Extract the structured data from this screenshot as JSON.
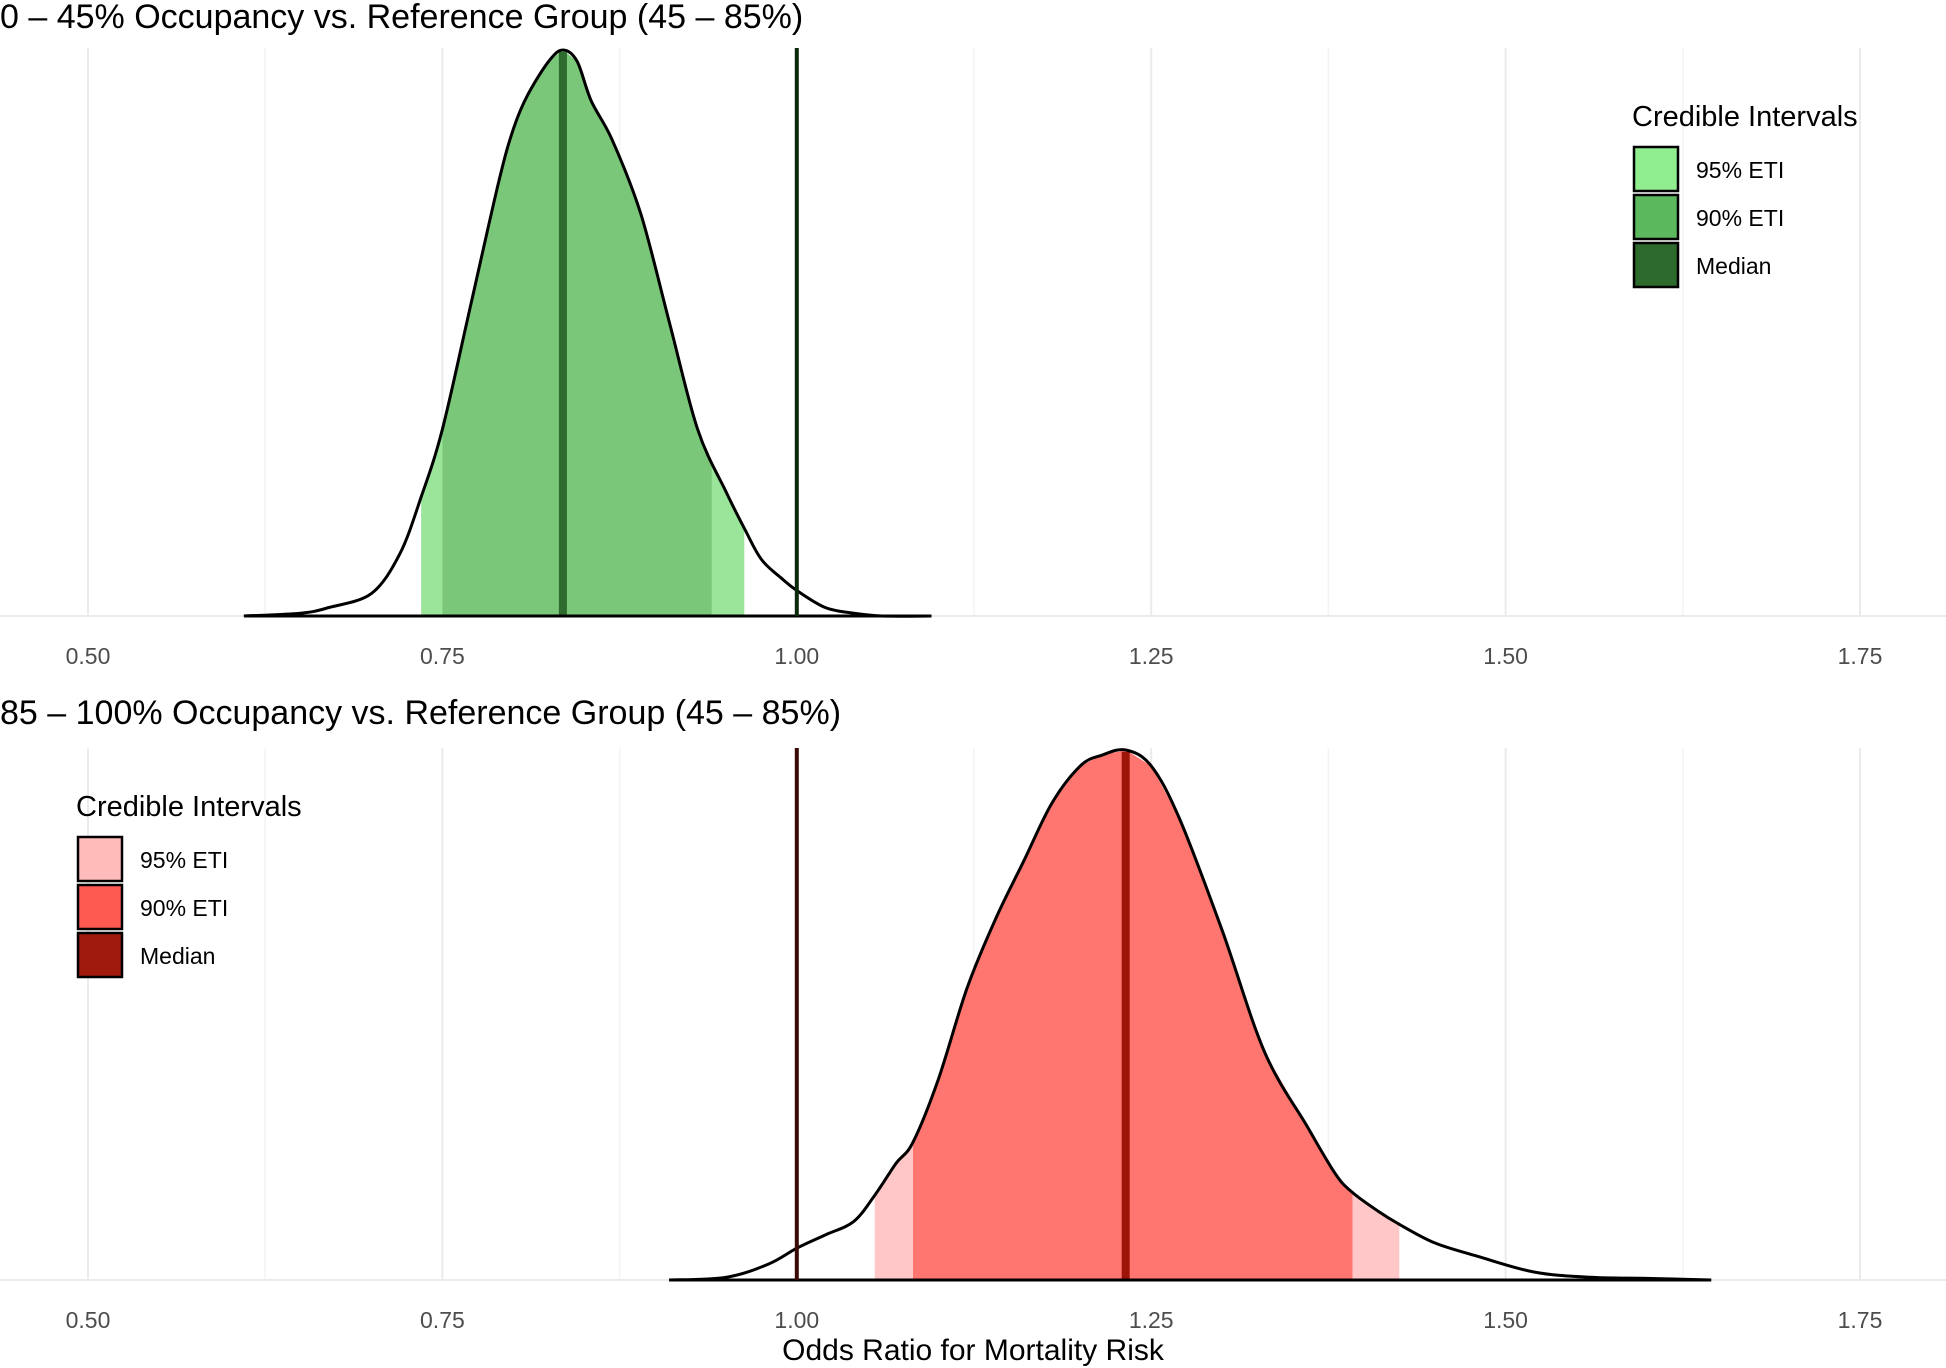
{
  "chart_data": [
    {
      "type": "density",
      "title": "0 – 45% Occupancy vs. Reference Group (45 – 85%)",
      "xlabel": "",
      "ylabel": "",
      "xlim": [
        0.5,
        1.75
      ],
      "xticks": [
        0.5,
        0.75,
        1.0,
        1.25,
        1.5,
        1.75
      ],
      "xtick_labels": [
        "0.50",
        "0.75",
        "1.00",
        "1.25",
        "1.50",
        "1.75"
      ],
      "reference_line": 1.0,
      "median": 0.835,
      "eti_95": [
        0.735,
        0.963
      ],
      "eti_90": [
        0.75,
        0.94
      ],
      "density": {
        "x": [
          0.61,
          0.65,
          0.67,
          0.7,
          0.72,
          0.735,
          0.75,
          0.77,
          0.79,
          0.8,
          0.81,
          0.825,
          0.835,
          0.845,
          0.855,
          0.87,
          0.89,
          0.91,
          0.93,
          0.95,
          0.963,
          0.975,
          0.99,
          1.0,
          1.02,
          1.04,
          1.06,
          1.095
        ],
        "y": [
          0.0,
          0.005,
          0.015,
          0.04,
          0.11,
          0.21,
          0.33,
          0.55,
          0.77,
          0.86,
          0.92,
          0.98,
          1.0,
          0.98,
          0.91,
          0.84,
          0.71,
          0.52,
          0.33,
          0.22,
          0.155,
          0.1,
          0.065,
          0.045,
          0.015,
          0.005,
          0.0,
          0.0
        ]
      },
      "legend": {
        "title": "Credible Intervals",
        "position": "top-right",
        "items": [
          {
            "label": "95% ETI",
            "color": "#90EE90"
          },
          {
            "label": "90% ETI",
            "color": "#5CB85C"
          },
          {
            "label": "Median",
            "color": "#2D6A2D"
          }
        ]
      },
      "colors": {
        "eti_95": "#9BE59B",
        "eti_90": "#7AC77A",
        "median": "#2E6B2E",
        "reference": "#0A2A0A"
      }
    },
    {
      "type": "density",
      "title": "85 – 100% Occupancy vs. Reference Group (45 – 85%)",
      "xlabel": "Odds Ratio for Mortality Risk",
      "ylabel": "",
      "xlim": [
        0.5,
        1.75
      ],
      "xticks": [
        0.5,
        0.75,
        1.0,
        1.25,
        1.5,
        1.75
      ],
      "xtick_labels": [
        "0.50",
        "0.75",
        "1.00",
        "1.25",
        "1.50",
        "1.75"
      ],
      "reference_line": 1.0,
      "median": 1.232,
      "eti_95": [
        1.055,
        1.425
      ],
      "eti_90": [
        1.082,
        1.392
      ],
      "density": {
        "x": [
          0.91,
          0.95,
          0.98,
          1.0,
          1.02,
          1.04,
          1.055,
          1.07,
          1.082,
          1.1,
          1.12,
          1.14,
          1.16,
          1.18,
          1.2,
          1.215,
          1.232,
          1.25,
          1.27,
          1.3,
          1.33,
          1.36,
          1.38,
          1.392,
          1.41,
          1.425,
          1.45,
          1.48,
          1.52,
          1.56,
          1.6,
          1.645
        ],
        "y": [
          0.0,
          0.005,
          0.03,
          0.06,
          0.085,
          0.11,
          0.16,
          0.22,
          0.26,
          0.38,
          0.55,
          0.68,
          0.79,
          0.9,
          0.97,
          0.99,
          1.0,
          0.97,
          0.87,
          0.66,
          0.43,
          0.29,
          0.2,
          0.165,
          0.13,
          0.105,
          0.07,
          0.045,
          0.015,
          0.005,
          0.003,
          0.0
        ]
      },
      "legend": {
        "title": "Credible Intervals",
        "position": "top-left",
        "items": [
          {
            "label": "95% ETI",
            "color": "#FFBABA"
          },
          {
            "label": "90% ETI",
            "color": "#FF5A52"
          },
          {
            "label": "Median",
            "color": "#A01A0E"
          }
        ]
      },
      "colors": {
        "eti_95": "#FFC7C7",
        "eti_90": "#FF7570",
        "median": "#9C1508",
        "reference": "#3A0A06"
      }
    }
  ]
}
